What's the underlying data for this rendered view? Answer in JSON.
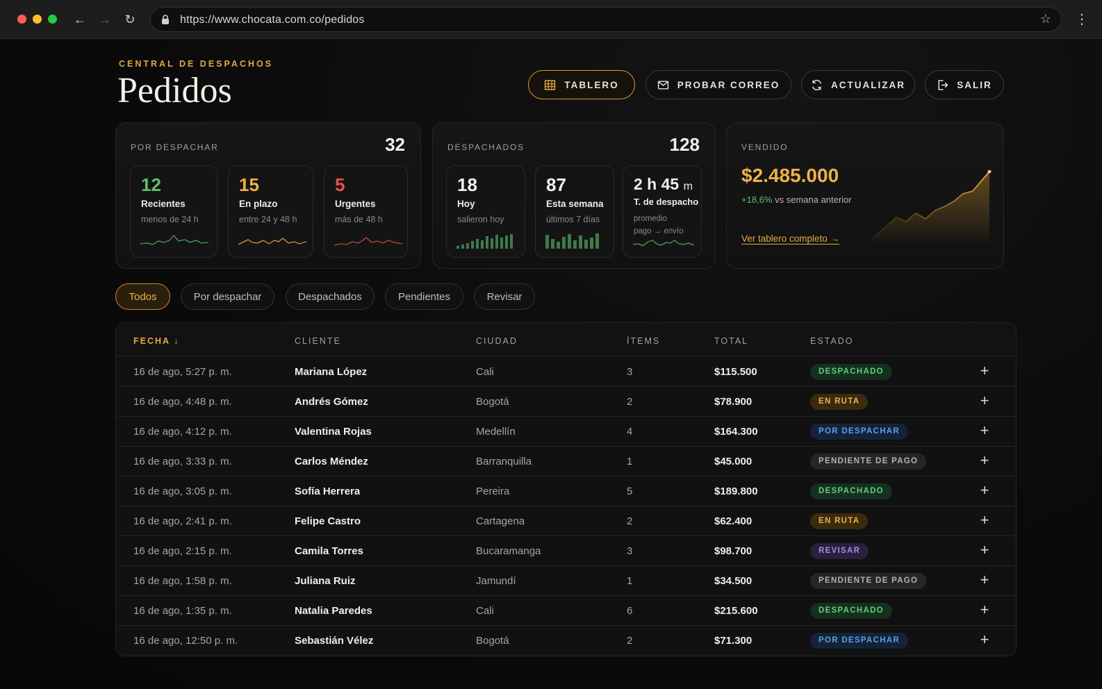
{
  "browser": {
    "url": "https://www.chocata.com.co/pedidos"
  },
  "header": {
    "eyebrow": "CENTRAL DE DESPACHOS",
    "title": "Pedidos",
    "buttons": {
      "tablero": "TABLERO",
      "probar_correo": "PROBAR CORREO",
      "actualizar": "ACTUALIZAR",
      "salir": "SALIR"
    }
  },
  "stats": {
    "por_despachar": {
      "label": "POR DESPACHAR",
      "total": "32",
      "items": [
        {
          "value": "12",
          "title": "Recientes",
          "sub": "menos de 24 h",
          "color": "#5fbf6d"
        },
        {
          "value": "15",
          "title": "En plazo",
          "sub": "entre 24 y 48 h",
          "color": "#f0b04a"
        },
        {
          "value": "5",
          "title": "Urgentes",
          "sub": "más de 48 h",
          "color": "#e2564a"
        }
      ]
    },
    "despachados": {
      "label": "DESPACHADOS",
      "total": "128",
      "items": [
        {
          "value": "18",
          "title": "Hoy",
          "sub": "salieron hoy"
        },
        {
          "value": "87",
          "title": "Esta semana",
          "sub": "últimos 7 días"
        },
        {
          "value_main": "2 h 45",
          "value_unit": "m",
          "title": "T. de despacho",
          "sub1": "promedio",
          "sub2": "pago → envío"
        }
      ]
    },
    "vendido": {
      "label": "VENDIDO",
      "amount": "$2.485.000",
      "change": "+18,6%",
      "change_rest": "vs semana anterior",
      "link": "Ver tablero completo →"
    }
  },
  "filters": [
    "Todos",
    "Por despachar",
    "Despachados",
    "Pendientes",
    "Revisar"
  ],
  "table": {
    "columns": {
      "fecha": "FECHA ↓",
      "cliente": "CLIENTE",
      "ciudad": "CIUDAD",
      "items": "ÍTEMS",
      "total": "TOTAL",
      "estado": "ESTADO"
    },
    "rows": [
      {
        "fecha": "16 de ago, 5:27 p. m.",
        "cliente": "Mariana López",
        "ciudad": "Cali",
        "items": "3",
        "total": "$115.500",
        "estado": "DESPACHADO"
      },
      {
        "fecha": "16 de ago, 4:48 p. m.",
        "cliente": "Andrés Gómez",
        "ciudad": "Bogotá",
        "items": "2",
        "total": "$78.900",
        "estado": "EN RUTA"
      },
      {
        "fecha": "16 de ago, 4:12 p. m.",
        "cliente": "Valentina Rojas",
        "ciudad": "Medellín",
        "items": "4",
        "total": "$164.300",
        "estado": "POR DESPACHAR"
      },
      {
        "fecha": "16 de ago, 3:33 p. m.",
        "cliente": "Carlos Méndez",
        "ciudad": "Barranquilla",
        "items": "1",
        "total": "$45.000",
        "estado": "PENDIENTE DE PAGO"
      },
      {
        "fecha": "16 de ago, 3:05 p. m.",
        "cliente": "Sofía Herrera",
        "ciudad": "Pereira",
        "items": "5",
        "total": "$189.800",
        "estado": "DESPACHADO"
      },
      {
        "fecha": "16 de ago, 2:41 p. m.",
        "cliente": "Felipe Castro",
        "ciudad": "Cartagena",
        "items": "2",
        "total": "$62.400",
        "estado": "EN RUTA"
      },
      {
        "fecha": "16 de ago, 2:15 p. m.",
        "cliente": "Camila Torres",
        "ciudad": "Bucaramanga",
        "items": "3",
        "total": "$98.700",
        "estado": "REVISAR"
      },
      {
        "fecha": "16 de ago, 1:58 p. m.",
        "cliente": "Juliana Ruiz",
        "ciudad": "Jamundí",
        "items": "1",
        "total": "$34.500",
        "estado": "PENDIENTE DE PAGO"
      },
      {
        "fecha": "16 de ago, 1:35 p. m.",
        "cliente": "Natalia Paredes",
        "ciudad": "Cali",
        "items": "6",
        "total": "$215.600",
        "estado": "DESPACHADO"
      },
      {
        "fecha": "16 de ago, 12:50 p. m.",
        "cliente": "Sebastián Vélez",
        "ciudad": "Bogotá",
        "items": "2",
        "total": "$71.300",
        "estado": "POR DESPACHAR"
      }
    ]
  },
  "colors": {
    "accent": "#e2a93d",
    "green": "#5fbf6d",
    "red": "#e2564a",
    "blue": "#5aa0e8",
    "purple": "#a98be6"
  }
}
